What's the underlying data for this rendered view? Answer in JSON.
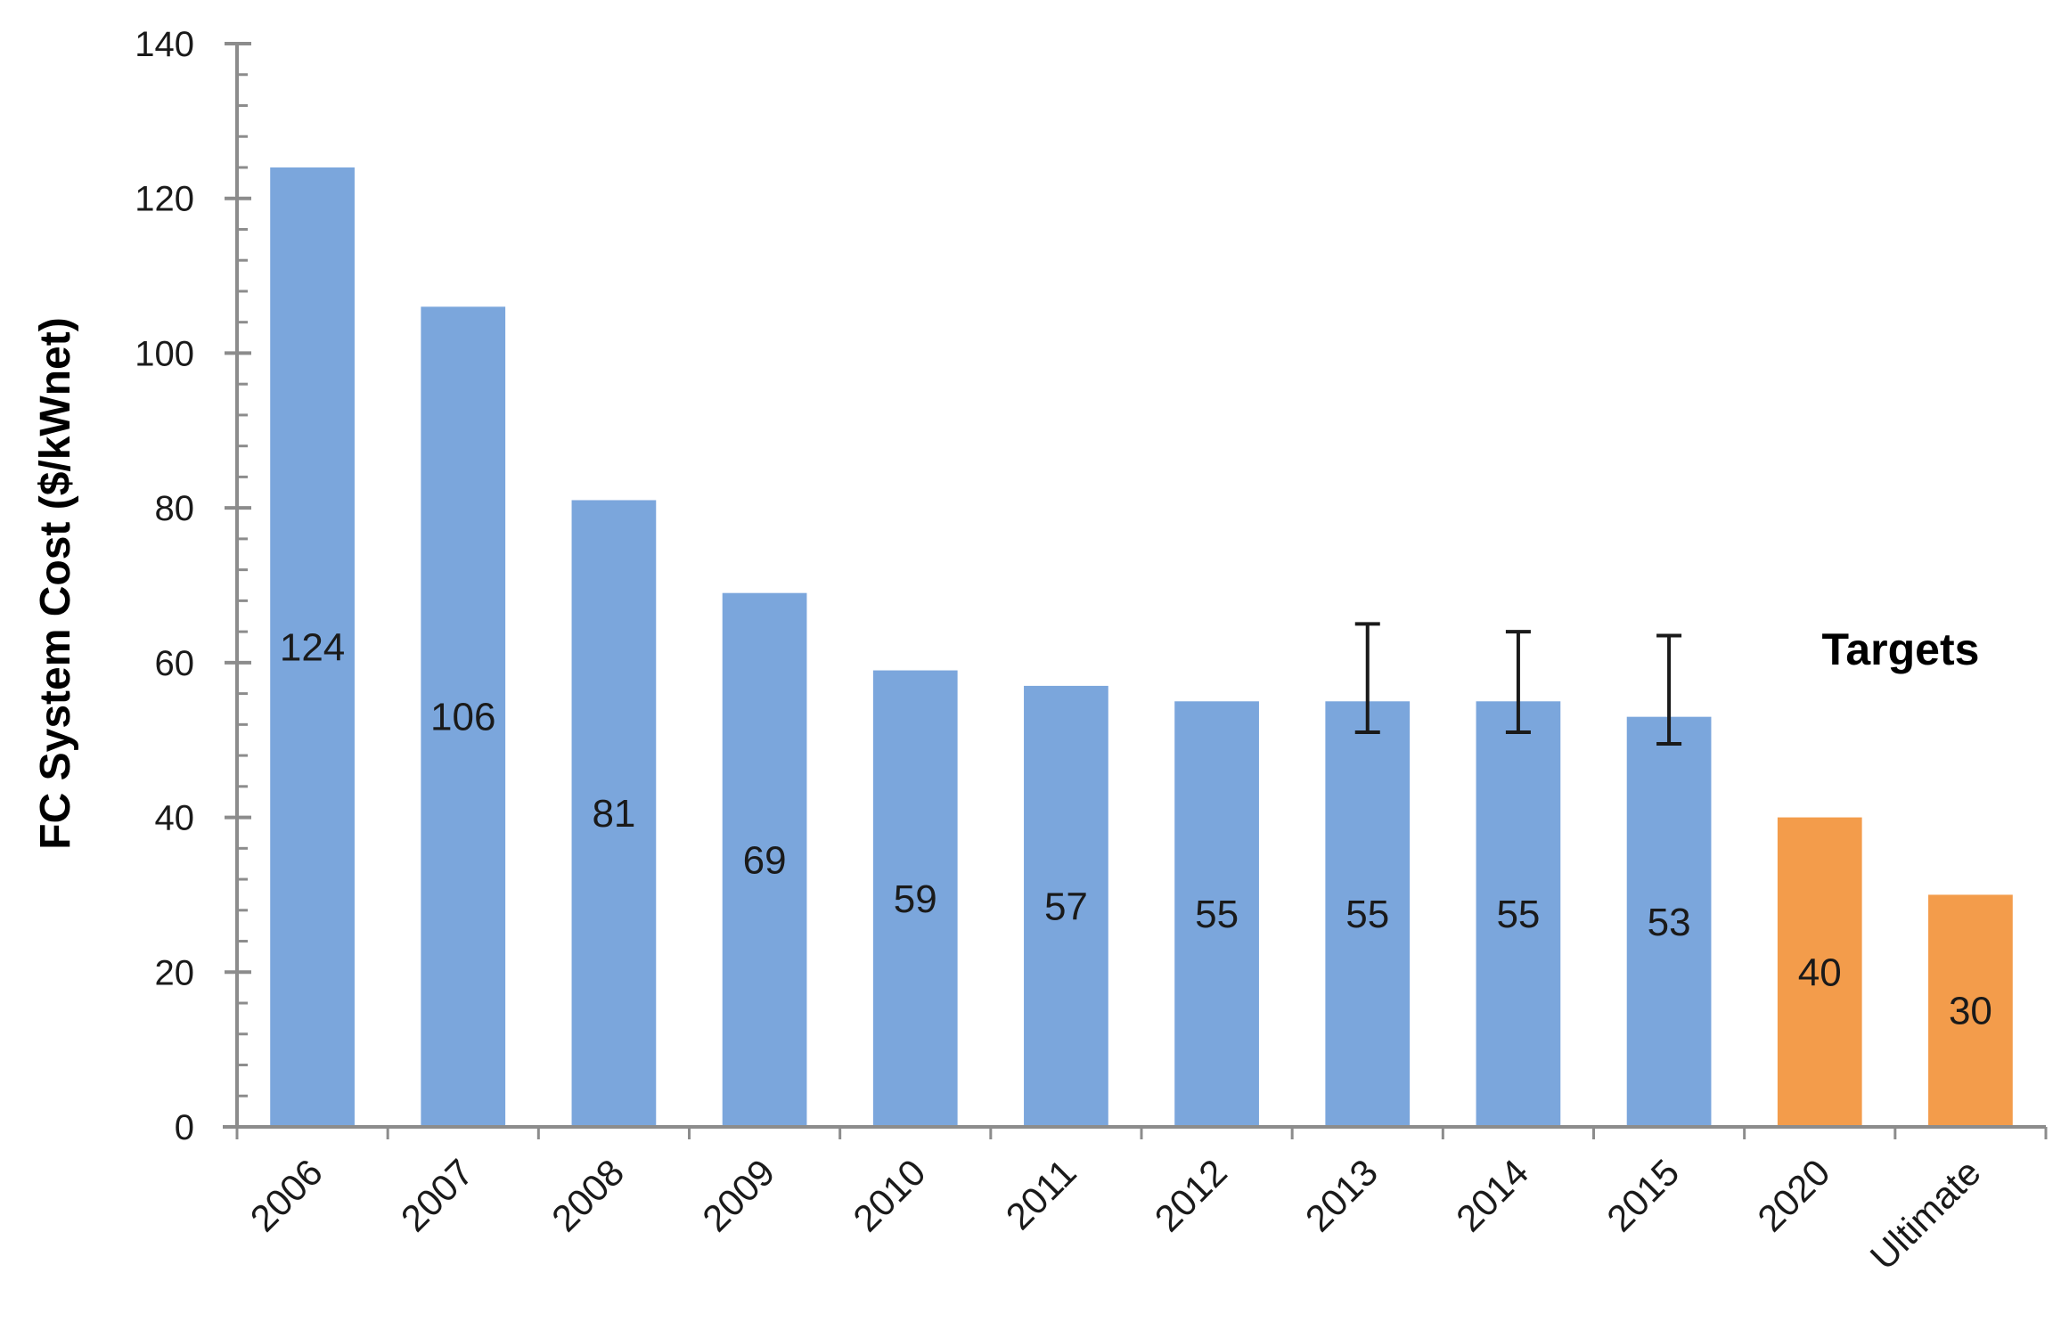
{
  "chart_data": {
    "type": "bar",
    "title": "",
    "xlabel": "",
    "ylabel": "FC System Cost ($/kWnet)",
    "ylim": [
      0,
      140
    ],
    "y_major_step": 20,
    "y_minor_step": 4,
    "y_ticks": [
      "0",
      "20",
      "40",
      "60",
      "80",
      "100",
      "120",
      "140"
    ],
    "grid": false,
    "legend": "none",
    "categories": [
      "2006",
      "2007",
      "2008",
      "2009",
      "2010",
      "2011",
      "2012",
      "2013",
      "2014",
      "2015",
      "2020",
      "Ultimate"
    ],
    "values": [
      124,
      106,
      81,
      69,
      59,
      57,
      55,
      55,
      55,
      53,
      40,
      30
    ],
    "labels": [
      "124",
      "106",
      "81",
      "69",
      "59",
      "57",
      "55",
      "55",
      "55",
      "53",
      "40",
      "30"
    ],
    "bar_kind": [
      "actual",
      "actual",
      "actual",
      "actual",
      "actual",
      "actual",
      "actual",
      "actual",
      "actual",
      "actual",
      "target",
      "target"
    ],
    "error_bars": [
      null,
      null,
      null,
      null,
      null,
      null,
      null,
      [
        51,
        65
      ],
      [
        51,
        64
      ],
      [
        49.5,
        63.5
      ],
      null,
      null
    ],
    "annotation": "Targets",
    "colors": {
      "actual": "#7ba6dc",
      "target": "#f39c4b",
      "axis": "#8c8c8c",
      "error_bar": "#1a1a1a"
    }
  }
}
